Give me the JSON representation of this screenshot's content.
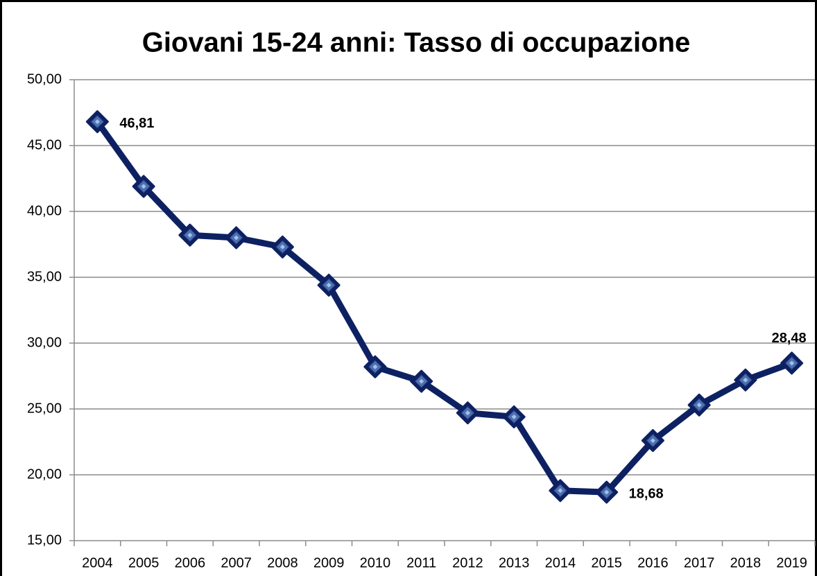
{
  "chart_data": {
    "type": "line",
    "title": "Giovani 15-24 anni: Tasso di occupazione",
    "categories": [
      "2004",
      "2005",
      "2006",
      "2007",
      "2008",
      "2009",
      "2010",
      "2011",
      "2012",
      "2013",
      "2014",
      "2015",
      "2016",
      "2017",
      "2018",
      "2019"
    ],
    "series": [
      {
        "name": "Tasso di occupazione",
        "color": "#0d2162",
        "values": [
          46.81,
          41.9,
          38.2,
          38.0,
          37.3,
          34.4,
          28.2,
          27.1,
          24.7,
          24.4,
          18.8,
          18.68,
          22.6,
          25.3,
          27.2,
          28.48
        ],
        "value_labels": [
          "46,81",
          null,
          null,
          null,
          null,
          null,
          null,
          null,
          null,
          null,
          null,
          "18,68",
          null,
          null,
          null,
          "28,48"
        ]
      }
    ],
    "ylim": [
      15,
      50
    ],
    "yticks": [
      {
        "value": 15,
        "label": "15,00"
      },
      {
        "value": 20,
        "label": "20,00"
      },
      {
        "value": 25,
        "label": "25,00"
      },
      {
        "value": 30,
        "label": "30,00"
      },
      {
        "value": 35,
        "label": "35,00"
      },
      {
        "value": 40,
        "label": "40,00"
      },
      {
        "value": 45,
        "label": "45,00"
      },
      {
        "value": 50,
        "label": "50,00"
      }
    ],
    "grid": true
  }
}
